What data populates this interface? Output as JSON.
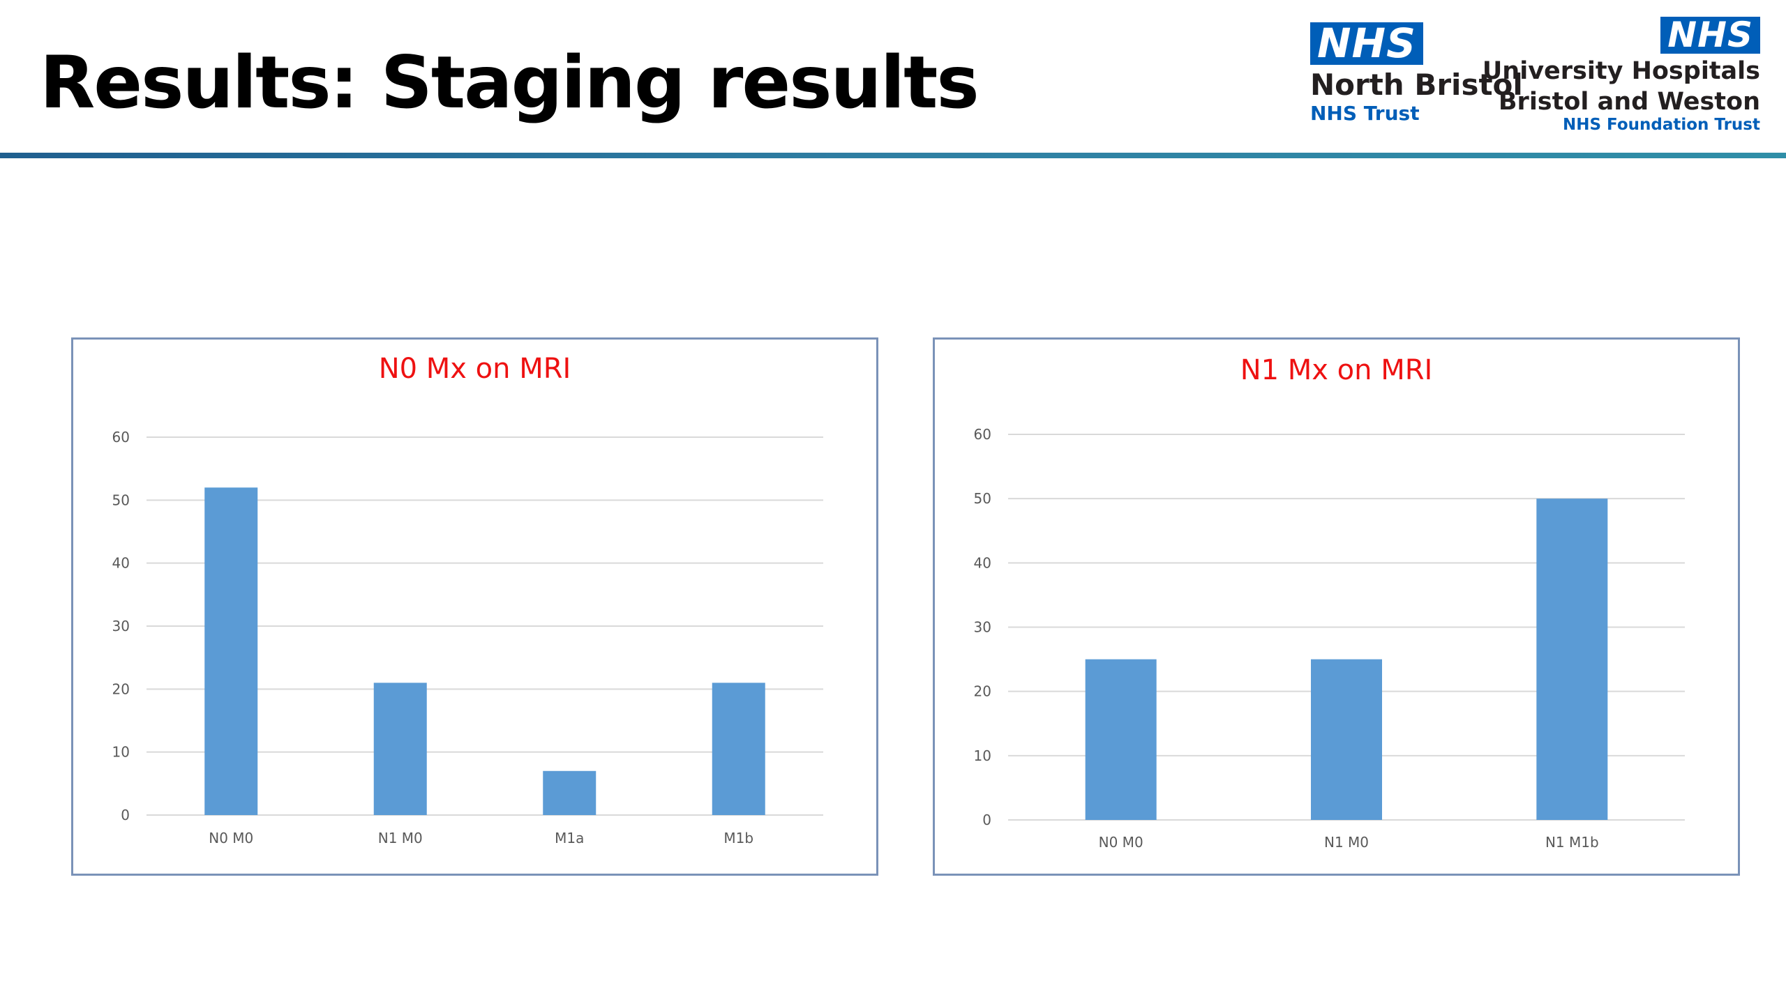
{
  "slide": {
    "title": "Results: Staging results"
  },
  "logos": {
    "north_bristol": {
      "mark": "NHS",
      "org": "North Bristol",
      "trust": "NHS Trust"
    },
    "uhbw": {
      "mark": "NHS",
      "org_line1": "University Hospitals",
      "org_line2": "Bristol and Weston",
      "trust": "NHS Foundation Trust"
    }
  },
  "colors": {
    "bar": "#5b9bd5",
    "chart_title": "#ee1111",
    "nhs_blue": "#005eb8"
  },
  "chart_data": [
    {
      "type": "bar",
      "title": "N0 Mx on MRI",
      "categories": [
        "N0 M0",
        "N1 M0",
        "M1a",
        "M1b"
      ],
      "values": [
        52,
        21,
        7,
        21
      ],
      "ylim": [
        0,
        60
      ],
      "yticks": [
        0,
        10,
        20,
        30,
        40,
        50,
        60
      ],
      "grid": true
    },
    {
      "type": "bar",
      "title": "N1 Mx on MRI",
      "categories": [
        "N0 M0",
        "N1 M0",
        "N1 M1b"
      ],
      "values": [
        25,
        25,
        50
      ],
      "ylim": [
        0,
        60
      ],
      "yticks": [
        0,
        10,
        20,
        30,
        40,
        50,
        60
      ],
      "grid": true
    }
  ]
}
